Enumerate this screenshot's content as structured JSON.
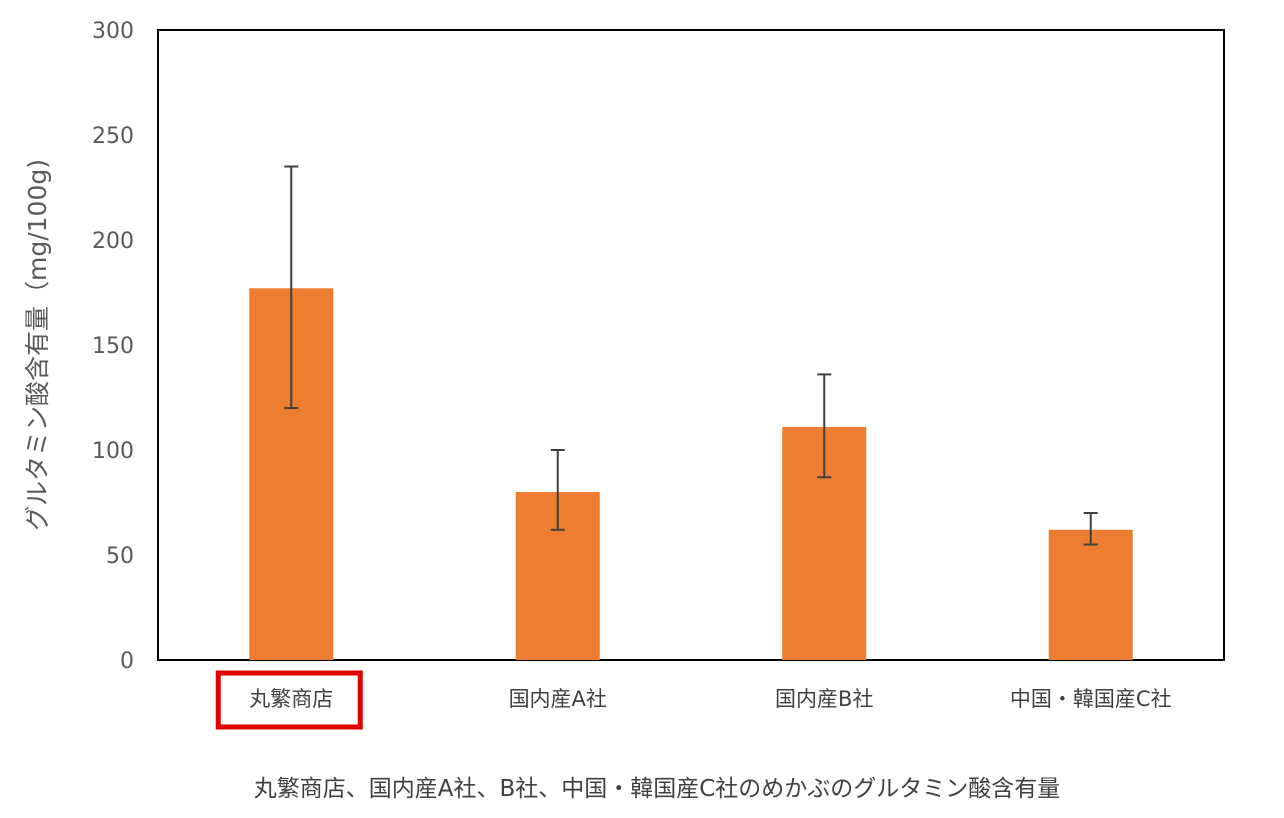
{
  "chart_data": {
    "type": "bar",
    "categories": [
      "丸繁商店",
      "国内産A社",
      "国内産B社",
      "中国・韓国産C社"
    ],
    "values": [
      177,
      80,
      111,
      62
    ],
    "error_low": [
      120,
      62,
      87,
      55
    ],
    "error_high": [
      235,
      100,
      136,
      70
    ],
    "ylabel": "グルタミン酸含有量（mg/100g)",
    "ylim": [
      0,
      300
    ],
    "yticks": [
      0,
      50,
      100,
      150,
      200,
      250,
      300
    ],
    "bar_color": "#ed7d31",
    "highlight_category": "丸繁商店",
    "highlight_color": "#e00000",
    "caption": "丸繁商店、国内産A社、B社、中国・韓国産C社のめかぶのグルタミン酸含有量",
    "grid": false
  }
}
